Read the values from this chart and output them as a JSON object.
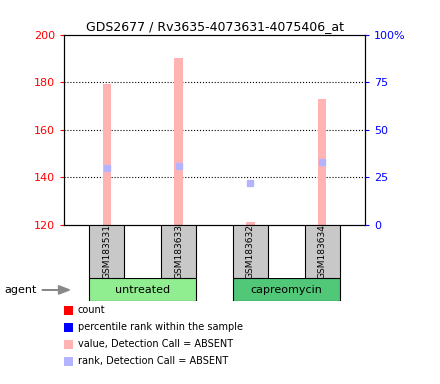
{
  "title": "GDS2677 / Rv3635-4073631-4075406_at",
  "samples": [
    "GSM183531",
    "GSM183633",
    "GSM183632",
    "GSM183634"
  ],
  "groups": [
    "untreated",
    "untreated",
    "capreomycin",
    "capreomycin"
  ],
  "bar_values": [
    179,
    190,
    121,
    173
  ],
  "bar_bottom": 120,
  "rank_values": [
    30,
    31,
    22,
    33
  ],
  "left_ylim": [
    120,
    200
  ],
  "right_ylim": [
    0,
    100
  ],
  "left_yticks": [
    120,
    140,
    160,
    180,
    200
  ],
  "right_yticks": [
    0,
    25,
    50,
    75,
    100
  ],
  "right_yticklabels": [
    "0",
    "25",
    "50",
    "75",
    "100%"
  ],
  "bar_color_absent": "#FFB3B3",
  "rank_color_absent": "#B3B3FF",
  "legend_colors": [
    "#FF0000",
    "#0000FF",
    "#FFB3B3",
    "#B3B3FF"
  ],
  "legend_labels": [
    "count",
    "percentile rank within the sample",
    "value, Detection Call = ABSENT",
    "rank, Detection Call = ABSENT"
  ],
  "x_positions": [
    1,
    2,
    3,
    4
  ],
  "bar_width": 0.12,
  "sample_box_color": "#C8C8C8",
  "untreated_color": "#90EE90",
  "capreomycin_color": "#50C878",
  "agent_label": "agent"
}
